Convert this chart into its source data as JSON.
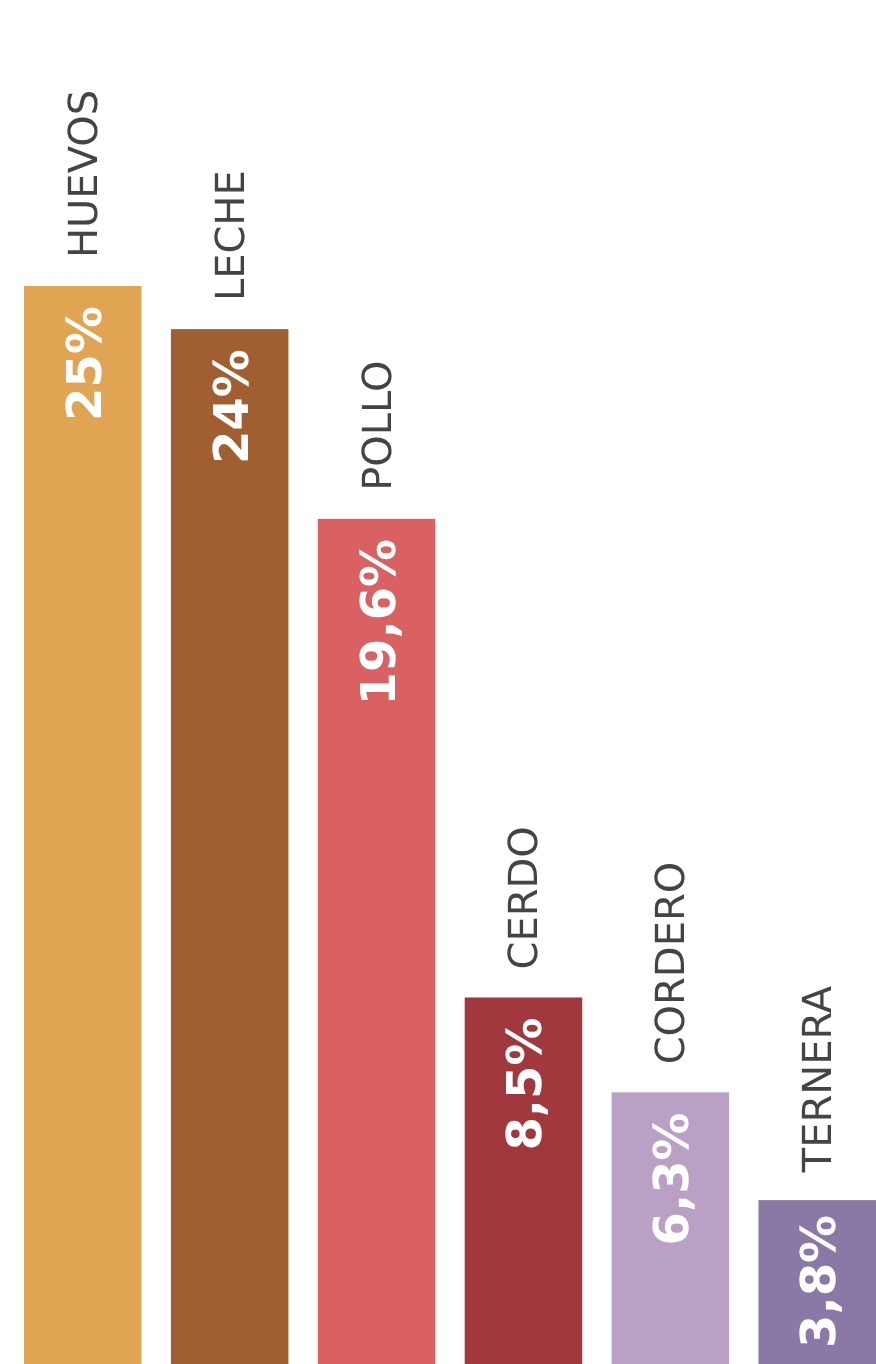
{
  "chart_data": {
    "type": "bar",
    "categories": [
      "HUEVOS",
      "LECHE",
      "POLLO",
      "CERDO",
      "CORDERO",
      "TERNERA"
    ],
    "values": [
      25,
      24,
      19.6,
      8.5,
      6.3,
      3.8
    ],
    "value_labels": [
      "25%",
      "24%",
      "19,6%",
      "8,5%",
      "6,3%",
      "3,8%"
    ],
    "colors": [
      "#e0a452",
      "#a15f31",
      "#d96161",
      "#a0383e",
      "#bba0c6",
      "#8a78a6"
    ]
  }
}
